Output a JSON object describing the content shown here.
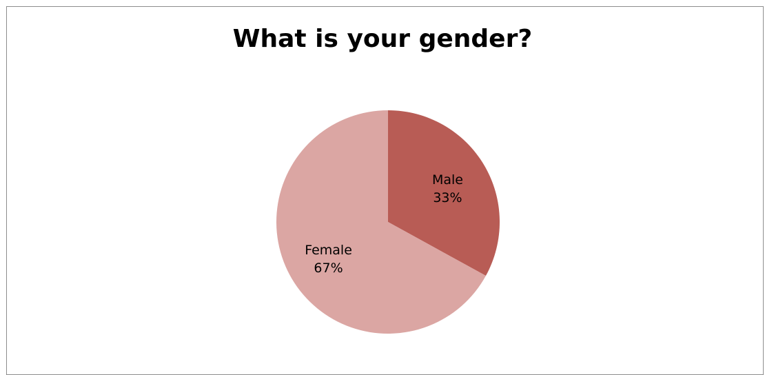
{
  "chart_data": {
    "type": "pie",
    "title": "What is your gender?",
    "start_angle_deg": 0,
    "direction": "clockwise",
    "slices": [
      {
        "label": "Male",
        "value": 33,
        "percent_label": "33%",
        "color": "#b85c55"
      },
      {
        "label": "Female",
        "value": 67,
        "percent_label": "67%",
        "color": "#dba6a3"
      }
    ],
    "legend": "none",
    "data_labels": "category-and-percent-inside"
  }
}
